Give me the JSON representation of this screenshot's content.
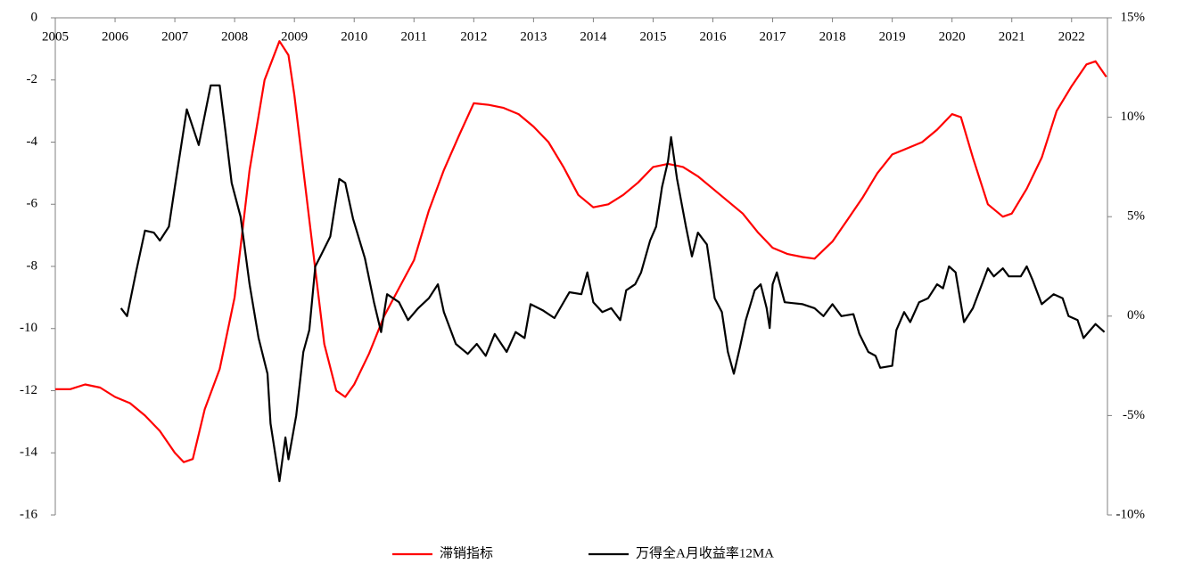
{
  "chart_data": {
    "type": "line",
    "xlim": [
      2005,
      2022.6
    ],
    "xticks": [
      2005,
      2006,
      2007,
      2008,
      2009,
      2010,
      2011,
      2012,
      2013,
      2014,
      2015,
      2016,
      2017,
      2018,
      2019,
      2020,
      2021,
      2022
    ],
    "ylim": [
      -16,
      0
    ],
    "yticks": [
      0,
      -2,
      -4,
      -6,
      -8,
      -10,
      -12,
      -14,
      -16
    ],
    "y2lim": [
      -10,
      15
    ],
    "y2ticks": [
      {
        "value": 15,
        "label": "15%"
      },
      {
        "value": 10,
        "label": "10%"
      },
      {
        "value": 5,
        "label": "5%"
      },
      {
        "value": 0,
        "label": "0%"
      },
      {
        "value": -5,
        "label": "-5%"
      },
      {
        "value": -10,
        "label": "-10%"
      }
    ],
    "legend": "bottom",
    "series": [
      {
        "name": "滞销指标",
        "color": "#ff0000",
        "x": [
          2005.0,
          2005.25,
          2005.5,
          2005.75,
          2006.0,
          2006.25,
          2006.5,
          2006.75,
          2007.0,
          2007.15,
          2007.3,
          2007.5,
          2007.75,
          2008.0,
          2008.25,
          2008.5,
          2008.75,
          2008.9,
          2009.0,
          2009.25,
          2009.5,
          2009.7,
          2009.85,
          2010.0,
          2010.25,
          2010.5,
          2010.75,
          2011.0,
          2011.25,
          2011.5,
          2011.75,
          2012.0,
          2012.25,
          2012.5,
          2012.75,
          2013.0,
          2013.25,
          2013.5,
          2013.75,
          2014.0,
          2014.25,
          2014.5,
          2014.75,
          2015.0,
          2015.25,
          2015.5,
          2015.75,
          2016.0,
          2016.25,
          2016.5,
          2016.75,
          2017.0,
          2017.25,
          2017.5,
          2017.7,
          2018.0,
          2018.25,
          2018.5,
          2018.75,
          2019.0,
          2019.25,
          2019.5,
          2019.75,
          2020.0,
          2020.15,
          2020.35,
          2020.6,
          2020.85,
          2021.0,
          2021.25,
          2021.5,
          2021.75,
          2022.0,
          2022.25,
          2022.4,
          2022.58
        ],
        "values": [
          -11.95,
          -11.95,
          -11.8,
          -11.9,
          -12.2,
          -12.4,
          -12.8,
          -13.3,
          -14.0,
          -14.3,
          -14.2,
          -12.6,
          -11.3,
          -9.0,
          -4.9,
          -2.0,
          -0.75,
          -1.2,
          -2.5,
          -6.5,
          -10.5,
          -12.0,
          -12.2,
          -11.8,
          -10.8,
          -9.6,
          -8.7,
          -7.8,
          -6.2,
          -4.9,
          -3.8,
          -2.75,
          -2.8,
          -2.9,
          -3.1,
          -3.5,
          -4.0,
          -4.8,
          -5.7,
          -6.1,
          -6.0,
          -5.7,
          -5.3,
          -4.8,
          -4.7,
          -4.8,
          -5.1,
          -5.5,
          -5.9,
          -6.3,
          -6.9,
          -7.4,
          -7.6,
          -7.7,
          -7.75,
          -7.2,
          -6.5,
          -5.8,
          -5.0,
          -4.4,
          -4.2,
          -4.0,
          -3.6,
          -3.1,
          -3.2,
          -4.5,
          -6.0,
          -6.4,
          -6.3,
          -5.5,
          -4.5,
          -3.0,
          -2.2,
          -1.5,
          -1.4,
          -1.9
        ]
      },
      {
        "name": "万得全A月收益率12MA",
        "color": "#000000",
        "axis": "y2",
        "x": [
          2006.1,
          2006.2,
          2006.35,
          2006.5,
          2006.65,
          2006.75,
          2006.9,
          2007.0,
          2007.2,
          2007.4,
          2007.6,
          2007.75,
          2007.85,
          2007.95,
          2008.1,
          2008.25,
          2008.4,
          2008.55,
          2008.6,
          2008.75,
          2008.85,
          2008.9,
          2009.03,
          2009.15,
          2009.25,
          2009.35,
          2009.45,
          2009.6,
          2009.75,
          2009.85,
          2009.98,
          2010.18,
          2010.33,
          2010.45,
          2010.55,
          2010.75,
          2010.9,
          2011.07,
          2011.25,
          2011.4,
          2011.5,
          2011.7,
          2011.9,
          2012.05,
          2012.2,
          2012.35,
          2012.55,
          2012.7,
          2012.85,
          2012.95,
          2013.15,
          2013.35,
          2013.6,
          2013.8,
          2013.9,
          2014.0,
          2014.15,
          2014.3,
          2014.45,
          2014.55,
          2014.7,
          2014.8,
          2014.95,
          2015.05,
          2015.15,
          2015.25,
          2015.3,
          2015.4,
          2015.55,
          2015.65,
          2015.75,
          2015.9,
          2016.03,
          2016.15,
          2016.25,
          2016.35,
          2016.45,
          2016.55,
          2016.7,
          2016.8,
          2016.9,
          2016.95,
          2017.0,
          2017.07,
          2017.2,
          2017.5,
          2017.7,
          2017.85,
          2018.0,
          2018.15,
          2018.35,
          2018.45,
          2018.6,
          2018.72,
          2018.8,
          2019.0,
          2019.07,
          2019.2,
          2019.3,
          2019.45,
          2019.6,
          2019.75,
          2019.85,
          2019.95,
          2020.06,
          2020.2,
          2020.35,
          2020.5,
          2020.6,
          2020.7,
          2020.85,
          2020.95,
          2021.15,
          2021.25,
          2021.35,
          2021.5,
          2021.7,
          2021.85,
          2021.95,
          2022.1,
          2022.2,
          2022.4,
          2022.55
        ],
        "values": [
          0.4,
          0.0,
          2.2,
          4.3,
          4.2,
          3.8,
          4.5,
          6.5,
          10.4,
          8.6,
          11.6,
          11.6,
          9.2,
          6.7,
          5.0,
          1.6,
          -1.1,
          -2.9,
          -5.4,
          -8.3,
          -6.1,
          -7.2,
          -5.0,
          -1.8,
          -0.7,
          2.5,
          3.1,
          4.0,
          6.9,
          6.7,
          4.9,
          2.9,
          0.7,
          -0.8,
          1.1,
          0.7,
          -0.2,
          0.4,
          0.9,
          1.6,
          0.2,
          -1.4,
          -1.9,
          -1.4,
          -2.0,
          -0.9,
          -1.8,
          -0.8,
          -1.1,
          0.6,
          0.3,
          -0.1,
          1.2,
          1.1,
          2.2,
          0.7,
          0.2,
          0.4,
          -0.2,
          1.3,
          1.6,
          2.2,
          3.8,
          4.5,
          6.5,
          7.8,
          9.0,
          6.9,
          4.5,
          3.0,
          4.2,
          3.6,
          0.9,
          0.2,
          -1.8,
          -2.9,
          -1.6,
          -0.2,
          1.3,
          1.6,
          0.4,
          -0.6,
          1.6,
          2.2,
          0.7,
          0.6,
          0.4,
          0.0,
          0.6,
          0.0,
          0.1,
          -0.9,
          -1.8,
          -2.0,
          -2.6,
          -2.5,
          -0.7,
          0.2,
          -0.3,
          0.7,
          0.9,
          1.6,
          1.4,
          2.5,
          2.2,
          -0.3,
          0.4,
          1.6,
          2.4,
          2.0,
          2.4,
          2.0,
          2.0,
          2.5,
          1.8,
          0.6,
          1.1,
          0.9,
          0.0,
          -0.2,
          -1.1,
          -0.4,
          -0.8
        ]
      }
    ]
  }
}
